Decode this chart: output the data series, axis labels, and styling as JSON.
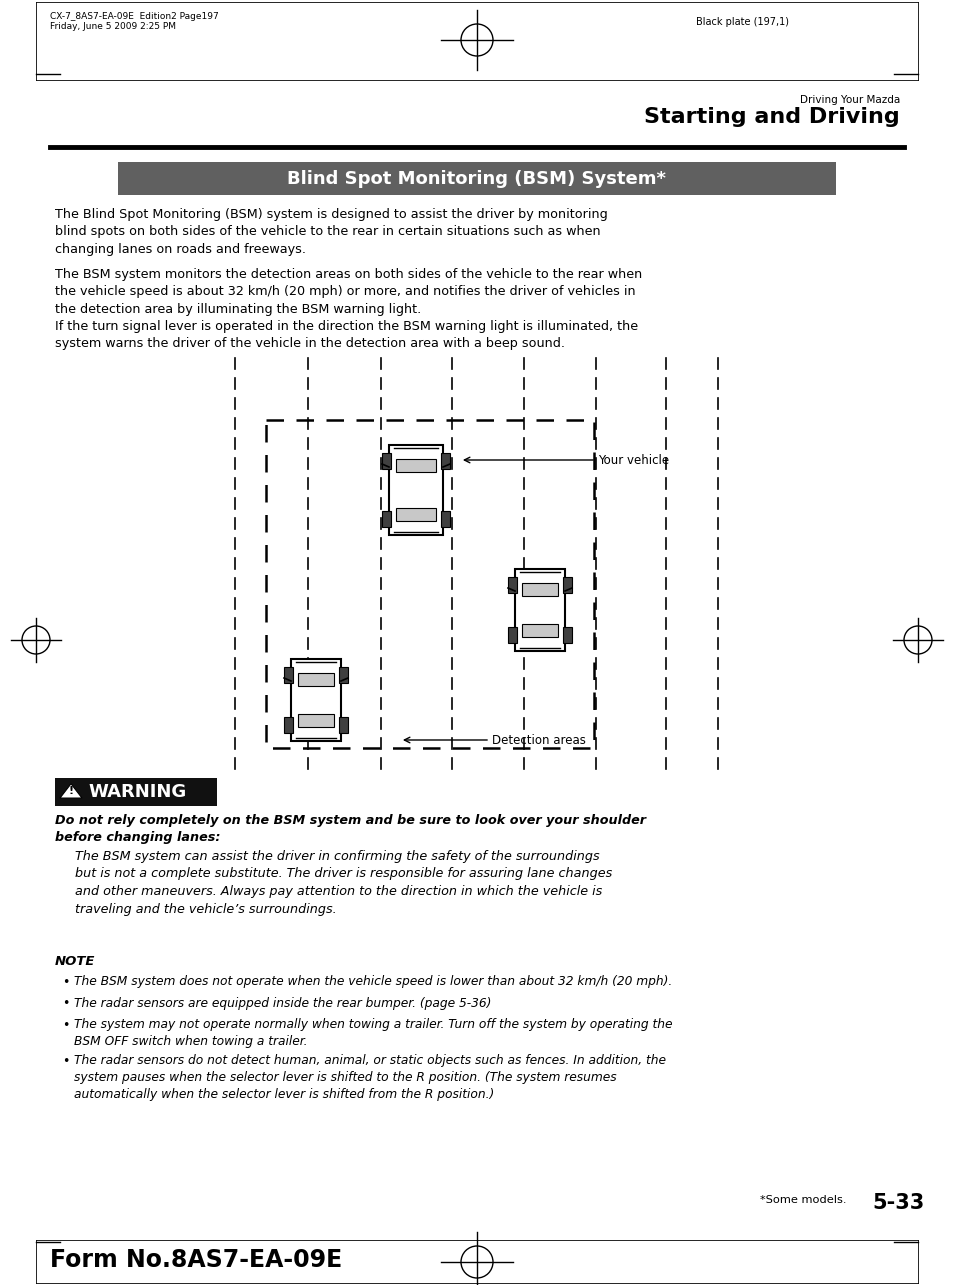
{
  "page_header_left1": "CX-7_8AS7-EA-09E  Edition2 Page197",
  "page_header_left2": "Friday, June 5 2009 2:25 PM",
  "page_header_right": "Black plate (197,1)",
  "section_label": "Driving Your Mazda",
  "section_title": "Starting and Driving",
  "title_box_text": "Blind Spot Monitoring (BSM) System*",
  "title_box_bg": "#606060",
  "title_box_text_color": "#ffffff",
  "para1": "The Blind Spot Monitoring (BSM) system is designed to assist the driver by monitoring\nblind spots on both sides of the vehicle to the rear in certain situations such as when\nchanging lanes on roads and freeways.",
  "para2a": "The BSM system monitors the detection areas on both sides of the vehicle to the rear when\nthe vehicle speed is about 32 km/h (20 mph) or more, and notifies the driver of vehicles in\nthe detection area by illuminating the BSM warning light.",
  "para2b": "If the turn signal lever is operated in the direction the BSM warning light is illuminated, the\nsystem warns the driver of the vehicle in the detection area with a beep sound.",
  "label_your_vehicle": "Your vehicle",
  "label_detection_areas": "Detection areas",
  "warning_title": "WARNING",
  "warning_bold": "Do not rely completely on the BSM system and be sure to look over your shoulder\nbefore changing lanes:",
  "warning_italic_indent": "     The BSM system can assist the driver in confirming the safety of the surroundings\n     but is not a complete substitute. The driver is responsible for assuring lane changes\n     and other maneuvers. Always pay attention to the direction in which the vehicle is\n     traveling and the vehicle’s surroundings.",
  "note_title": "NOTE",
  "note_bullets": [
    "The BSM system does not operate when the vehicle speed is lower than about 32 km/h (20 mph).",
    "The radar sensors are equipped inside the rear bumper. (page 5-36)",
    "The system may not operate normally when towing a trailer. Turn off the system by operating the\nBSM OFF switch when towing a trailer.",
    "The radar sensors do not detect human, animal, or static objects such as fences. In addition, the\nsystem pauses when the selector lever is shifted to the R position. (The system resumes\nautomatically when the selector lever is shifted from the R position.)"
  ],
  "footer_star_note": "*Some models.",
  "page_number": "5-33",
  "form_number": "Form No.8AS7-EA-09E",
  "bg_color": "#ffffff"
}
